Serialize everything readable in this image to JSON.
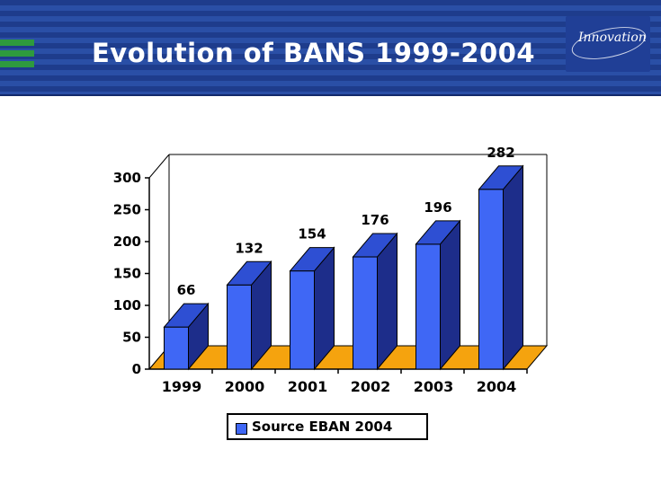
{
  "slide": {
    "title": "Evolution of BANS 1999-2004",
    "logo_text": "Innovation"
  },
  "chart_data": {
    "type": "bar",
    "categories": [
      "1999",
      "2000",
      "2001",
      "2002",
      "2003",
      "2004"
    ],
    "values": [
      66,
      132,
      154,
      176,
      196,
      282
    ],
    "series": [
      {
        "name": "Source EBAN 2004",
        "values": [
          66,
          132,
          154,
          176,
          196,
          282
        ]
      }
    ],
    "y_ticks": [
      0,
      50,
      100,
      150,
      200,
      250,
      300
    ],
    "ylim": [
      0,
      300
    ],
    "legend_position": "bottom",
    "grid": false,
    "colors": {
      "bar_front": "#3f67f5",
      "bar_top": "#2e4fd3",
      "bar_side": "#1d2d8a",
      "floor": "#f5a30e"
    }
  }
}
